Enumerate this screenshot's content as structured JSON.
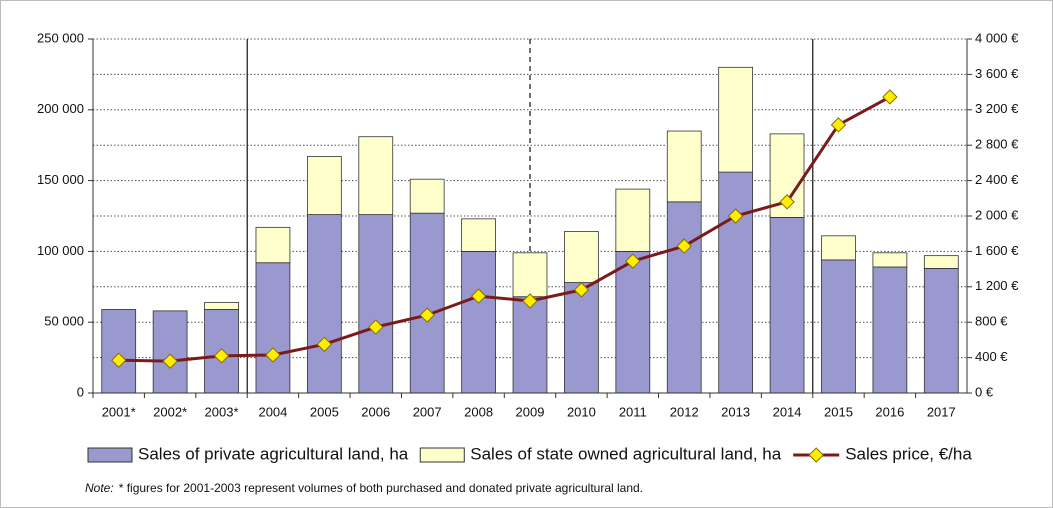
{
  "chart_data": {
    "type": "bar-line",
    "categories": [
      "2001*",
      "2002*",
      "2003*",
      "2004",
      "2005",
      "2006",
      "2007",
      "2008",
      "2009",
      "2010",
      "2011",
      "2012",
      "2013",
      "2014",
      "2015",
      "2016",
      "2017"
    ],
    "series": [
      {
        "name": "Sales of private agricultural land, ha",
        "color": "#9999cf",
        "values": [
          59000,
          58000,
          59000,
          92000,
          126000,
          126000,
          127000,
          100000,
          68000,
          78000,
          100000,
          135000,
          156000,
          124000,
          94000,
          89000,
          88000
        ]
      },
      {
        "name": "Sales of state owned agricultural land, ha",
        "color": "#ffffcc",
        "values": [
          0,
          0,
          5000,
          25000,
          41000,
          55000,
          24000,
          23000,
          31000,
          36000,
          44000,
          50000,
          74000,
          59000,
          17000,
          10000,
          9000
        ]
      },
      {
        "name": "Sales price, €/ha",
        "color": "#7b1a1a",
        "marker_color": "#ffee00",
        "axis": "y2",
        "values": [
          370,
          360,
          420,
          430,
          550,
          745,
          880,
          1095,
          1040,
          1165,
          1490,
          1660,
          2000,
          2160,
          3030,
          3345,
          null
        ]
      }
    ],
    "ylim": [
      0,
      250000
    ],
    "yticks": [
      0,
      {
        "value": 50000,
        "label": "50 000"
      },
      {
        "value": 100000,
        "label": "100 000"
      },
      {
        "value": 150000,
        "label": "150 000"
      },
      {
        "value": 200000,
        "label": "200 000"
      },
      {
        "value": 250000,
        "label": "250 000"
      }
    ],
    "y2lim": [
      0,
      4000
    ],
    "y2ticks": [
      {
        "value": 0,
        "label": "0 €"
      },
      {
        "value": 400,
        "label": "400 €"
      },
      {
        "value": 800,
        "label": "800 €"
      },
      {
        "value": 1200,
        "label": "1 200 €"
      },
      {
        "value": 1600,
        "label": "1 600 €"
      },
      {
        "value": 2000,
        "label": "2 000 €"
      },
      {
        "value": 2400,
        "label": "2 400 €"
      },
      {
        "value": 2800,
        "label": "2 800 €"
      },
      {
        "value": 3200,
        "label": "3 200 €"
      },
      {
        "value": 3600,
        "label": "3 600 €"
      },
      {
        "value": 4000,
        "label": "4 000 €"
      }
    ],
    "grid": true,
    "legend": "bottom",
    "note_label": "Note:",
    "note": "* figures for 2001-2003 represent volumes of both purchased and donated private agricultural land."
  }
}
